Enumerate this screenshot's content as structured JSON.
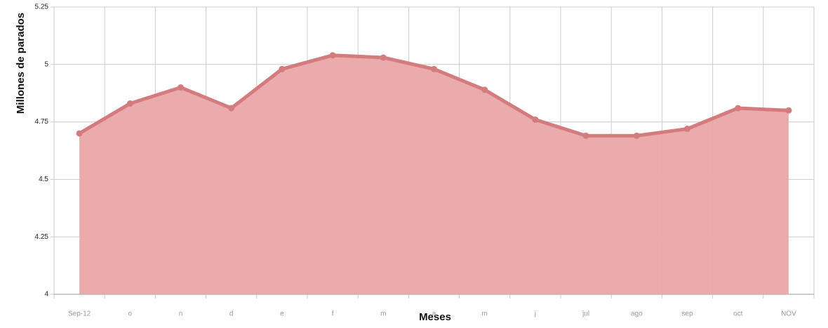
{
  "chart_data": {
    "type": "area",
    "x_label": "Meses",
    "y_label": "Millones de parados",
    "categories": [
      "Sep-12",
      "o",
      "n",
      "d",
      "e",
      "f",
      "m",
      "a",
      "m",
      "j",
      "jul",
      "ago",
      "sep",
      "oct",
      "NOV"
    ],
    "values": [
      4.7,
      4.83,
      4.9,
      4.81,
      4.98,
      5.04,
      5.03,
      4.98,
      4.89,
      4.76,
      4.69,
      4.69,
      4.72,
      4.81,
      4.8
    ],
    "color": "#e9a7a8",
    "line_color": "#d47b7e",
    "ylim": [
      4,
      5.25
    ],
    "yticks": [
      4,
      4.25,
      4.5,
      4.75,
      5,
      5.25
    ],
    "grid": true
  }
}
